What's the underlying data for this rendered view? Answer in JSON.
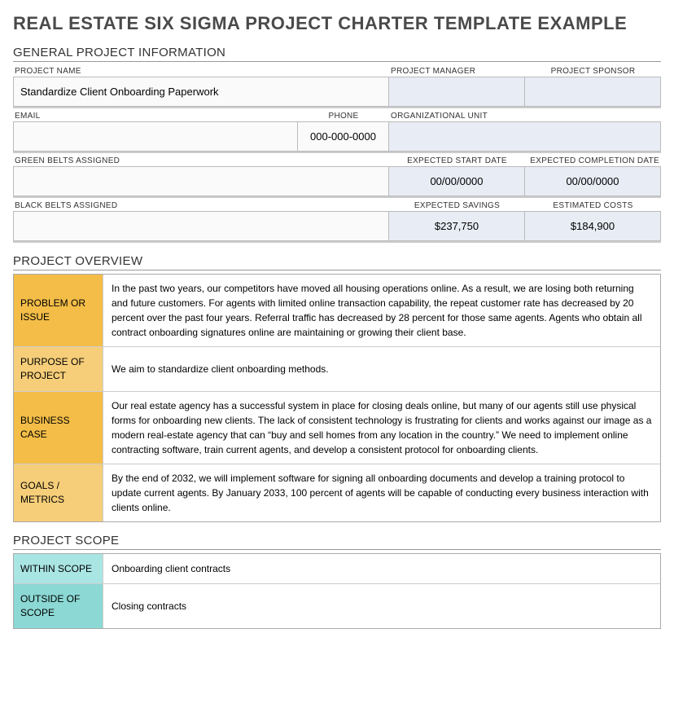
{
  "title": "REAL ESTATE SIX SIGMA PROJECT CHARTER TEMPLATE EXAMPLE",
  "sections": {
    "general": "GENERAL PROJECT INFORMATION",
    "overview": "PROJECT OVERVIEW",
    "scope": "PROJECT SCOPE"
  },
  "general": {
    "labels": {
      "project_name": "PROJECT NAME",
      "project_manager": "PROJECT MANAGER",
      "project_sponsor": "PROJECT SPONSOR",
      "email": "EMAIL",
      "phone": "PHONE",
      "org_unit": "ORGANIZATIONAL UNIT",
      "green_belts": "GREEN BELTS ASSIGNED",
      "start_date": "EXPECTED START DATE",
      "completion_date": "EXPECTED COMPLETION DATE",
      "black_belts": "BLACK BELTS ASSIGNED",
      "savings": "EXPECTED SAVINGS",
      "costs": "ESTIMATED COSTS"
    },
    "values": {
      "project_name": "Standardize Client Onboarding Paperwork",
      "project_manager": "",
      "project_sponsor": "",
      "email": "",
      "phone": "000-000-0000",
      "org_unit": "",
      "green_belts": "",
      "start_date": "00/00/0000",
      "completion_date": "00/00/0000",
      "black_belts": "",
      "savings": "$237,750",
      "costs": "$184,900"
    }
  },
  "overview": {
    "rows": [
      {
        "label": "PROBLEM OR ISSUE",
        "content": "In the past two years, our competitors have moved all housing operations online. As a result, we are losing both returning and future customers. For agents with limited online transaction capability, the repeat customer rate has decreased by 20 percent over the past four years. Referral traffic has decreased by 28 percent for those same agents. Agents who obtain all contract onboarding signatures online are maintaining or growing their client base.",
        "color": "yellow-dark"
      },
      {
        "label": "PURPOSE OF PROJECT",
        "content": "We aim to standardize client onboarding methods.",
        "color": "yellow-light"
      },
      {
        "label": "BUSINESS CASE",
        "content": "Our real estate agency has a successful system in place for closing deals online, but many of our agents still use physical forms for onboarding new clients. The lack of consistent technology is frustrating for clients and works against our image as a modern real-estate agency that can “buy and sell homes from any location in the country.” We need to implement online contracting software, train current agents, and develop a consistent protocol for onboarding clients.",
        "color": "yellow-dark"
      },
      {
        "label": "GOALS / METRICS",
        "content": "By the end of 2032, we will implement software for signing all onboarding documents and develop a training protocol to update current agents. By January 2033, 100 percent of agents will be capable of conducting every business interaction with clients online.",
        "color": "yellow-light"
      }
    ]
  },
  "scope": {
    "rows": [
      {
        "label": "WITHIN SCOPE",
        "content": "Onboarding client contracts",
        "color": "teal-light"
      },
      {
        "label": "OUTSIDE OF SCOPE",
        "content": "Closing contracts",
        "color": "teal-dark"
      }
    ]
  },
  "colors": {
    "yellow_dark": "#f3bd48",
    "yellow_light": "#f6ce79",
    "teal_light": "#a9e5e3",
    "teal_dark": "#8bd8d4",
    "blue_cell": "#e8ecf4"
  }
}
